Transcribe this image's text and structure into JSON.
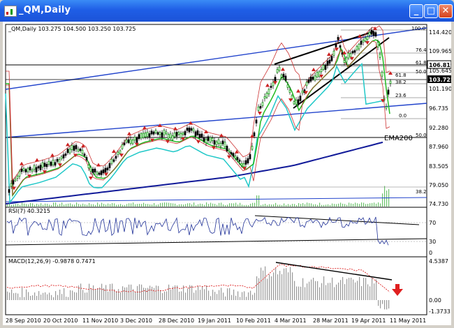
{
  "window": {
    "title": "_QM,Daily",
    "minimize": "_",
    "maximize": "□",
    "close": "✕"
  },
  "price_pane": {
    "header": "_QM,Daily  103.275 104.500 103.250 103.725",
    "axis_labels": [
      "114.420",
      "109.965",
      "106.819",
      "105.645",
      "103.725",
      "101.190",
      "96.735",
      "92.280",
      "87.960",
      "83.505",
      "79.050",
      "74.730"
    ],
    "current_price": "103.725",
    "line_price": "106.819",
    "fib_labels": [
      "100.0",
      "76.4",
      "61.8",
      "50.0",
      "61.8",
      "38.2",
      "23.6",
      "0.0",
      "50.0",
      "38.2"
    ],
    "ema_label": "EMA200"
  },
  "rsi_pane": {
    "header": "RSI(7) 40.3215",
    "axis_labels": [
      "70",
      "30",
      "0"
    ]
  },
  "macd_pane": {
    "header": "MACD(12,26,9) -0.9878 0.7471",
    "axis_labels": [
      "4.5387",
      "0.00",
      "-1.3733"
    ]
  },
  "date_axis": [
    "28 Sep 2010",
    "20 Oct 2010",
    "11 Nov 2010",
    "3 Dec 2010",
    "28 Dec 2010",
    "19 Jan 2011",
    "10 Feb 2011",
    "4 Mar 2011",
    "28 Mar 2011",
    "19 Apr 2011",
    "11 May 2011"
  ],
  "colors": {
    "bull": "#009900",
    "bear": "#000000",
    "fractal": "#cc2222",
    "ema_blue": "#111a99",
    "teal": "#20c8c8",
    "green_ma": "#22bb22",
    "channel": "#2244cc"
  }
}
